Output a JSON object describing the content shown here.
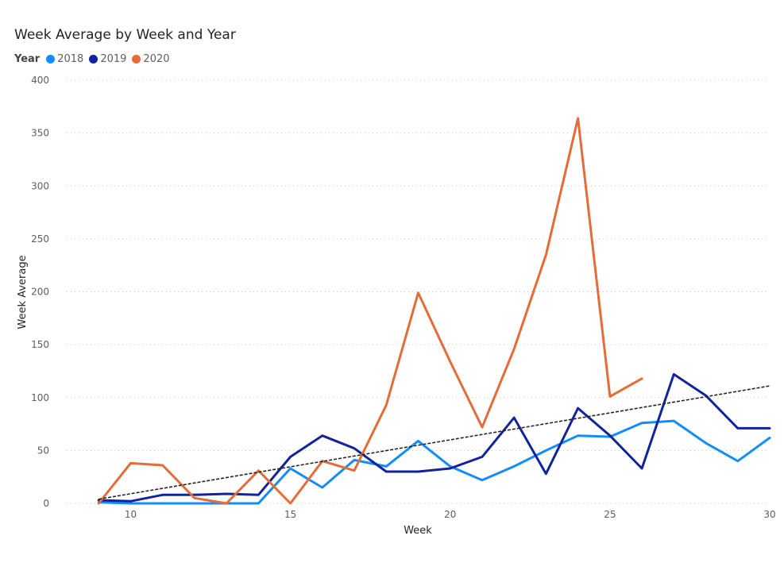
{
  "chart_data": {
    "type": "line",
    "title": "Week Average by Week and Year",
    "legend_title": "Year",
    "xlabel": "Week",
    "ylabel": "Week Average",
    "xlim": [
      8,
      30
    ],
    "ylim": [
      0,
      400
    ],
    "x_ticks": [
      10,
      15,
      20,
      25,
      30
    ],
    "y_ticks": [
      0,
      50,
      100,
      150,
      200,
      250,
      300,
      350,
      400
    ],
    "grid": true,
    "series": [
      {
        "name": "2018",
        "color": "#118dff",
        "x": [
          9,
          10,
          11,
          12,
          13,
          14,
          15,
          16,
          17,
          18,
          19,
          20,
          21,
          22,
          23,
          24,
          25,
          26,
          27,
          28,
          29,
          30
        ],
        "values": [
          1,
          0,
          0,
          0,
          0,
          0,
          33,
          15,
          41,
          35,
          59,
          35,
          22,
          35,
          50,
          64,
          63,
          76,
          78,
          57,
          40,
          62
        ]
      },
      {
        "name": "2019",
        "color": "#12239e",
        "x": [
          9,
          10,
          11,
          12,
          13,
          14,
          15,
          16,
          17,
          18,
          19,
          20,
          21,
          22,
          23,
          24,
          25,
          26,
          27,
          28,
          29,
          30
        ],
        "values": [
          3,
          2,
          8,
          8,
          9,
          8,
          44,
          64,
          52,
          30,
          30,
          33,
          44,
          81,
          28,
          90,
          64,
          33,
          122,
          102,
          71,
          71
        ]
      },
      {
        "name": "2020",
        "color": "#e66c37",
        "x": [
          9,
          10,
          11,
          12,
          13,
          14,
          15,
          16,
          17,
          18,
          19,
          20,
          21,
          22,
          23,
          24,
          25,
          26
        ],
        "values": [
          0,
          38,
          36,
          5,
          0,
          31,
          0,
          40,
          31,
          93,
          199,
          134,
          72,
          146,
          235,
          364,
          101,
          118
        ]
      }
    ],
    "trend_line": {
      "x": [
        9,
        30
      ],
      "y": [
        4,
        111
      ]
    }
  }
}
